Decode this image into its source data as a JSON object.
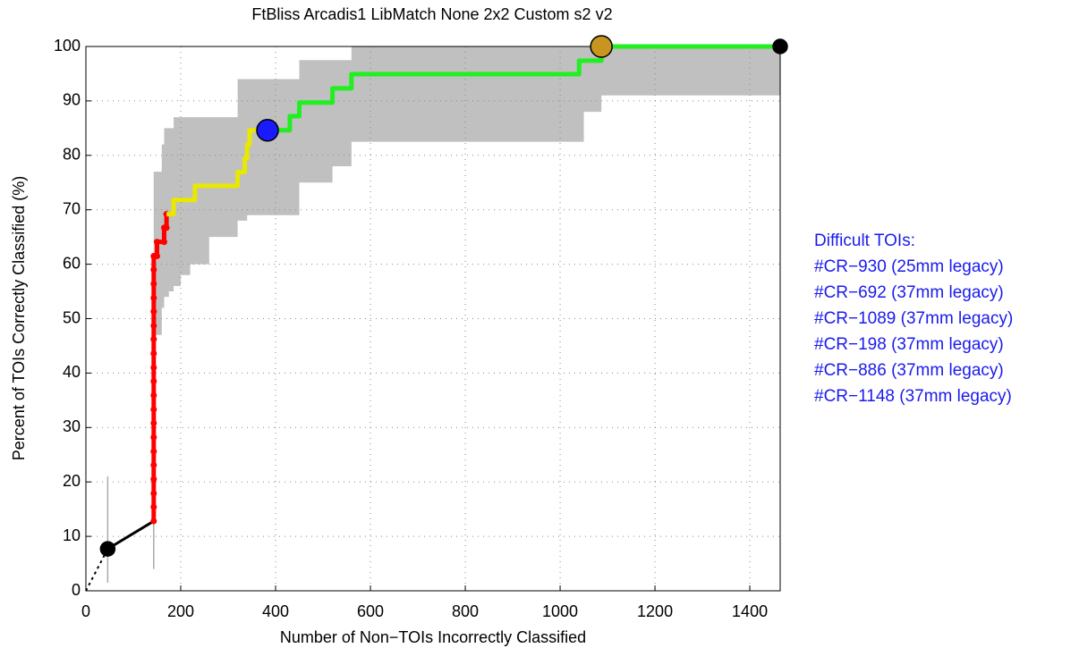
{
  "chart_data": {
    "type": "line",
    "title": "FtBliss Arcadis1 LibMatch None 2x2 Custom s2 v2",
    "x_label": "Number of Non−TOIs Incorrectly Classified",
    "y_label": "Percent of TOIs Correctly Classified (%)",
    "xlim": [
      0,
      1464
    ],
    "ylim": [
      0,
      100
    ],
    "xticks": [
      0,
      200,
      400,
      600,
      800,
      1000,
      1200,
      1400
    ],
    "yticks": [
      0,
      10,
      20,
      30,
      40,
      50,
      60,
      70,
      80,
      90,
      100
    ],
    "grid": true,
    "band": {
      "color": "#c0c0c0",
      "x": [
        143,
        160,
        165,
        175,
        185,
        200,
        220,
        260,
        320,
        340,
        380,
        400,
        450,
        520,
        560,
        1050,
        1087,
        1464
      ],
      "upper": [
        77,
        82,
        85,
        85,
        87,
        87,
        87,
        87,
        94,
        94,
        94,
        94,
        97.5,
        97.5,
        100,
        100,
        100,
        100
      ],
      "lower": [
        47,
        52,
        54,
        55,
        56,
        58,
        60,
        65,
        68,
        69,
        69,
        69,
        75,
        78,
        82.5,
        88,
        91,
        91
      ]
    },
    "error_bars": {
      "color": "#aaaaaa",
      "x": [
        46,
        143
      ],
      "low": [
        1.5,
        4
      ],
      "high": [
        21,
        25
      ]
    },
    "series": [
      {
        "color": "#000000",
        "dashed": true,
        "x": [
          0,
          46
        ],
        "values": [
          0,
          7.7
        ]
      },
      {
        "color": "#000000",
        "x": [
          46,
          143
        ],
        "values": [
          7.7,
          12.8
        ]
      },
      {
        "color": "#ff0000",
        "markers": true,
        "x": [
          143,
          143,
          143,
          143,
          143,
          143,
          143,
          143,
          143,
          143,
          143,
          143,
          143,
          143,
          143,
          143,
          143,
          143,
          143,
          143,
          150,
          150,
          165,
          165,
          170,
          170
        ],
        "values": [
          12.8,
          15.4,
          17.9,
          20.5,
          23.1,
          25.6,
          28.2,
          30.8,
          33.3,
          35.9,
          38.5,
          41.0,
          43.6,
          46.2,
          48.7,
          51.3,
          53.8,
          56.4,
          59.0,
          61.5,
          61.5,
          64.1,
          64.1,
          66.7,
          66.7,
          69.2
        ]
      },
      {
        "color": "#e8e800",
        "x": [
          170,
          185,
          185,
          230,
          230,
          320,
          320,
          335,
          335,
          340,
          340,
          345,
          345,
          383
        ],
        "values": [
          69.2,
          69.2,
          71.8,
          71.8,
          74.4,
          74.4,
          76.9,
          76.9,
          79.5,
          79.5,
          82.0,
          82.0,
          84.6,
          84.6
        ]
      },
      {
        "color": "#22ee22",
        "x": [
          383,
          430,
          430,
          450,
          450,
          520,
          520,
          560,
          560,
          1040,
          1040,
          1087,
          1087,
          1464
        ],
        "values": [
          84.6,
          84.6,
          87.2,
          87.2,
          89.7,
          89.7,
          92.3,
          92.3,
          94.9,
          94.9,
          97.4,
          97.4,
          100,
          100
        ]
      }
    ],
    "points": {
      "x": [
        46,
        383,
        1087,
        1464
      ],
      "values": [
        7.7,
        84.6,
        100,
        100
      ],
      "colors": [
        "#000000",
        "#1a1aff",
        "#c8961e",
        "#000000"
      ]
    },
    "annotations": [
      "Difficult TOIs:",
      "#CR−930 (25mm legacy)",
      "#CR−692 (37mm legacy)",
      "#CR−1089 (37mm legacy)",
      "#CR−198 (37mm legacy)",
      "#CR−886 (37mm legacy)",
      "#CR−1148 (37mm legacy)"
    ]
  }
}
